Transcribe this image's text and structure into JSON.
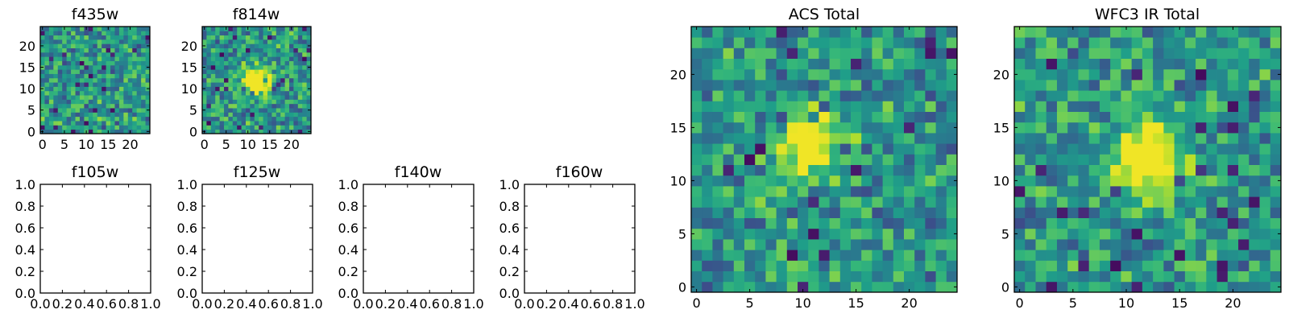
{
  "chart_data": [
    {
      "type": "heatmap",
      "title": "f435w",
      "grid_size": 25,
      "colormap": "viridis",
      "seed": 11,
      "xticks": [
        "0",
        "5",
        "10",
        "15",
        "20"
      ],
      "yticks": [
        "0",
        "5",
        "10",
        "15",
        "20"
      ],
      "xlim": [
        -0.5,
        24.5
      ],
      "ylim": [
        -0.5,
        24.5
      ],
      "source_peak": null
    },
    {
      "type": "heatmap",
      "title": "f814w",
      "grid_size": 25,
      "colormap": "viridis",
      "seed": 23,
      "xticks": [
        "0",
        "5",
        "10",
        "15",
        "20"
      ],
      "yticks": [
        "0",
        "5",
        "10",
        "15",
        "20"
      ],
      "xlim": [
        -0.5,
        24.5
      ],
      "ylim": [
        -0.5,
        24.5
      ],
      "source_peak": {
        "x": 12,
        "y": 12,
        "sigma": 2.3,
        "amplitude": 0.7
      }
    },
    {
      "type": "empty",
      "title": "f105w",
      "xlim": [
        0,
        1
      ],
      "ylim": [
        0,
        1
      ],
      "xticks": [
        "0.0",
        "0.2",
        "0.4",
        "0.6",
        "0.8",
        "1.0"
      ],
      "yticks": [
        "0.0",
        "0.2",
        "0.4",
        "0.6",
        "0.8",
        "1.0"
      ]
    },
    {
      "type": "empty",
      "title": "f125w",
      "xlim": [
        0,
        1
      ],
      "ylim": [
        0,
        1
      ],
      "xticks": [
        "0.0",
        "0.2",
        "0.4",
        "0.6",
        "0.8",
        "1.0"
      ],
      "yticks": [
        "0.0",
        "0.2",
        "0.4",
        "0.6",
        "0.8",
        "1.0"
      ]
    },
    {
      "type": "empty",
      "title": "f140w",
      "xlim": [
        0,
        1
      ],
      "ylim": [
        0,
        1
      ],
      "xticks": [
        "0.0",
        "0.2",
        "0.4",
        "0.6",
        "0.8",
        "1.0"
      ],
      "yticks": [
        "0.0",
        "0.2",
        "0.4",
        "0.6",
        "0.8",
        "1.0"
      ]
    },
    {
      "type": "empty",
      "title": "f160w",
      "xlim": [
        0,
        1
      ],
      "ylim": [
        0,
        1
      ],
      "xticks": [
        "0.0",
        "0.2",
        "0.4",
        "0.6",
        "0.8",
        "1.0"
      ],
      "yticks": [
        "0.0",
        "0.2",
        "0.4",
        "0.6",
        "0.8",
        "1.0"
      ]
    },
    {
      "type": "heatmap",
      "title": "ACS Total",
      "grid_size": 25,
      "colormap": "viridis",
      "seed": 37,
      "xticks": [
        "0",
        "5",
        "10",
        "15",
        "20"
      ],
      "yticks": [
        "0",
        "5",
        "10",
        "15",
        "20"
      ],
      "xlim": [
        -0.5,
        24.5
      ],
      "ylim": [
        -0.5,
        24.5
      ],
      "source_peak": {
        "x": 11,
        "y": 14,
        "sigma": 2.0,
        "amplitude": 0.6
      }
    },
    {
      "type": "heatmap",
      "title": "WFC3 IR Total",
      "grid_size": 25,
      "colormap": "viridis",
      "seed": 53,
      "xticks": [
        "0",
        "5",
        "10",
        "15",
        "20"
      ],
      "yticks": [
        "0",
        "5",
        "10",
        "15",
        "20"
      ],
      "xlim": [
        -0.5,
        24.5
      ],
      "ylim": [
        -0.5,
        24.5
      ],
      "source_peak": {
        "x": 12,
        "y": 12,
        "sigma": 2.2,
        "amplitude": 0.75
      }
    }
  ]
}
